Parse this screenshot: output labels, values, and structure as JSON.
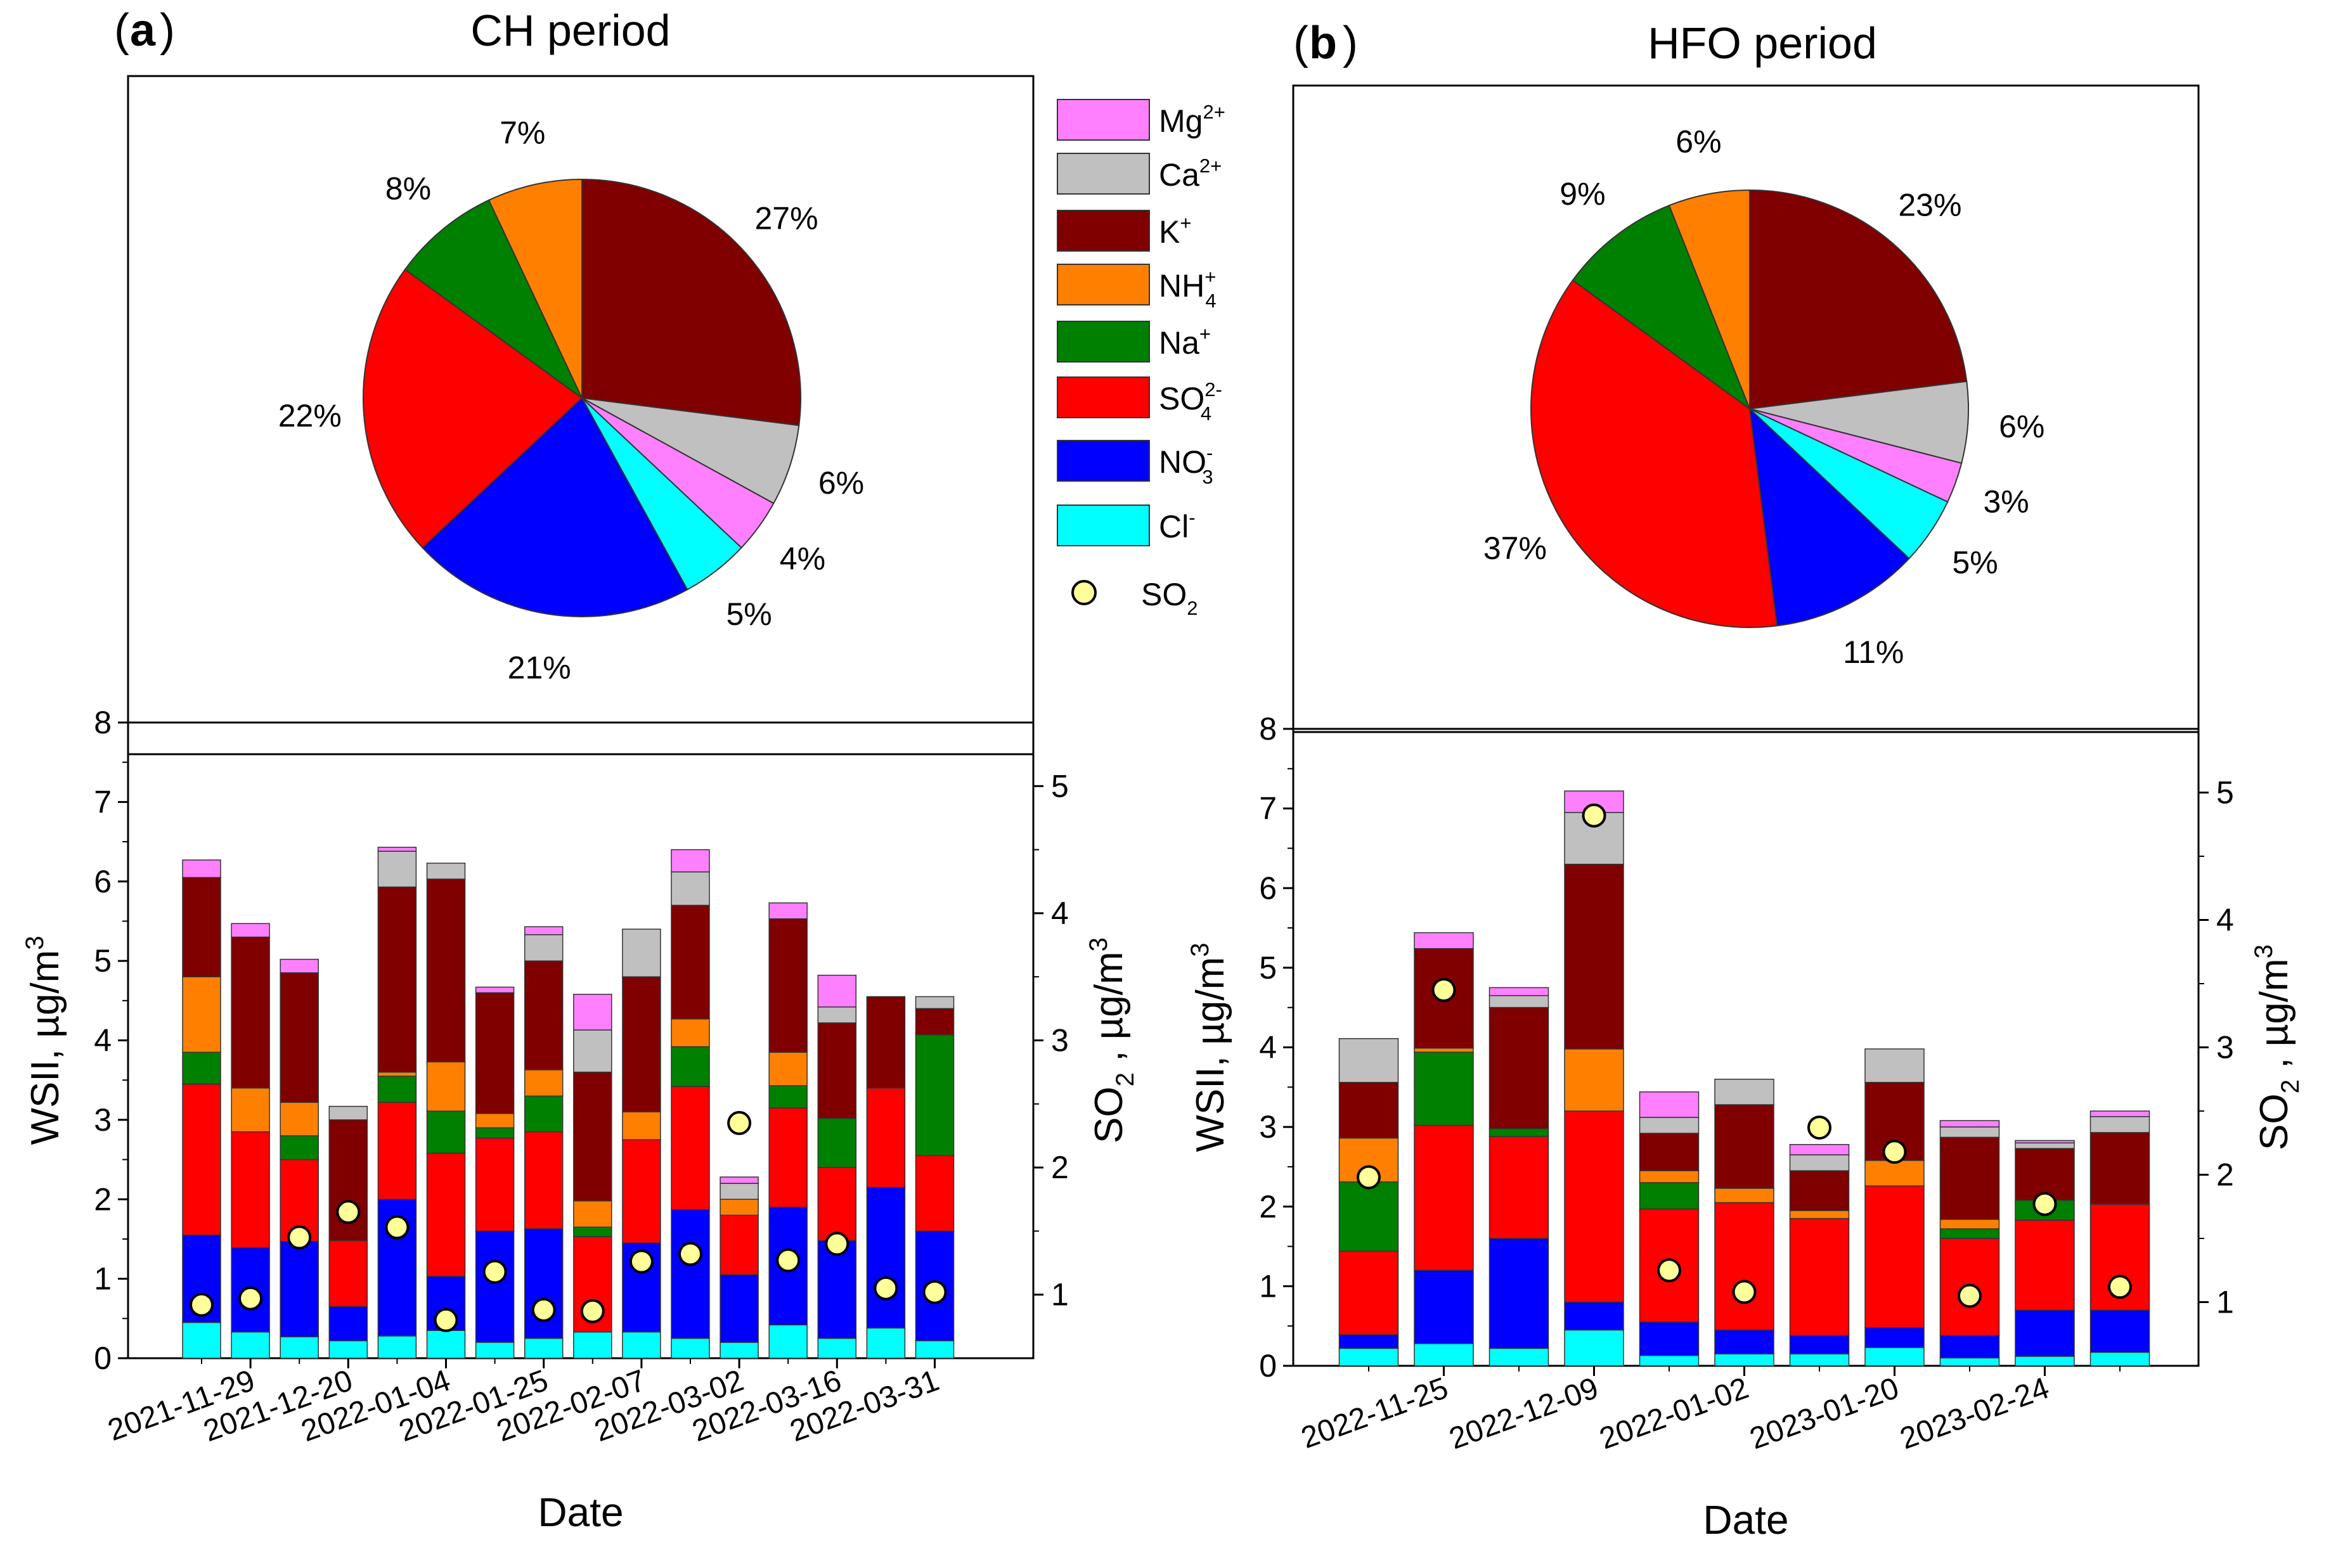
{
  "panels": {
    "a": {
      "label": "a",
      "title": "CH period"
    },
    "b": {
      "label": "b",
      "title": "HFO period"
    }
  },
  "legend": {
    "items": [
      {
        "key": "mg",
        "base": "Mg",
        "sup": "2+",
        "sub": "",
        "color": "#ff80ff"
      },
      {
        "key": "ca",
        "base": "Ca",
        "sup": "2+",
        "sub": "",
        "color": "#c0c0c0"
      },
      {
        "key": "k",
        "base": "K",
        "sup": "+",
        "sub": "",
        "color": "#800000"
      },
      {
        "key": "nh4",
        "base": "NH",
        "sup": "+",
        "sub": "4",
        "color": "#ff8000"
      },
      {
        "key": "na",
        "base": "Na",
        "sup": "+",
        "sub": "",
        "color": "#008000"
      },
      {
        "key": "so4",
        "base": "SO",
        "sup": "2-",
        "sub": "4",
        "color": "#ff0000"
      },
      {
        "key": "no3",
        "base": "NO",
        "sup": "-",
        "sub": "3",
        "color": "#0000ff"
      },
      {
        "key": "cl",
        "base": "Cl",
        "sup": "-",
        "sub": "",
        "color": "#00ffff"
      }
    ],
    "so2": {
      "base": "SO",
      "sub": "2",
      "color": "#ffff99"
    }
  },
  "axis_text": {
    "xlabel": "Date",
    "ylabel_left": "WSII, µg/m",
    "ylabel_right_base": "SO",
    "ylabel_right_sub": "2",
    "ylabel_right_rest": " , µg/m",
    "cube": "3"
  },
  "chart_data": [
    {
      "type": "pie",
      "panel": "a",
      "title": "CH period",
      "slices": [
        {
          "name": "K+",
          "value": 27,
          "label": "27%"
        },
        {
          "name": "Ca2+",
          "value": 6,
          "label": "6%"
        },
        {
          "name": "Mg2+",
          "value": 4,
          "label": "4%"
        },
        {
          "name": "Cl-",
          "value": 5,
          "label": "5%"
        },
        {
          "name": "NO3-",
          "value": 21,
          "label": "21%"
        },
        {
          "name": "SO42-",
          "value": 22,
          "label": "22%"
        },
        {
          "name": "Na+",
          "value": 8,
          "label": "8%"
        },
        {
          "name": "NH4+",
          "value": 7,
          "label": "7%"
        }
      ]
    },
    {
      "type": "pie",
      "panel": "b",
      "title": "HFO period",
      "slices": [
        {
          "name": "K+",
          "value": 23,
          "label": "23%"
        },
        {
          "name": "Ca2+",
          "value": 6,
          "label": "6%"
        },
        {
          "name": "Mg2+",
          "value": 3,
          "label": "3%"
        },
        {
          "name": "Cl-",
          "value": 5,
          "label": "5%"
        },
        {
          "name": "NO3-",
          "value": 11,
          "label": "11%"
        },
        {
          "name": "SO42-",
          "value": 37,
          "label": "37%"
        },
        {
          "name": "Na+",
          "value": 9,
          "label": "9%"
        },
        {
          "name": "NH4+",
          "value": 6,
          "label": "6%"
        }
      ]
    },
    {
      "type": "bar",
      "stacked": true,
      "panel": "a",
      "xlabel": "Date",
      "ylabel": "WSII, µg/m3",
      "y2label": "SO2 , µg/m3",
      "ylim": [
        0,
        8
      ],
      "y2lim": [
        0.5,
        5.5
      ],
      "yticks": [
        0,
        1,
        2,
        3,
        4,
        5,
        6,
        7,
        8
      ],
      "y2ticks": [
        1,
        2,
        3,
        4,
        5
      ],
      "xtick_labels": [
        "2021-11-29",
        "2021-12-20",
        "2022-01-04",
        "2022-01-25",
        "2022-02-07",
        "2022-03-02",
        "2022-03-16",
        "2022-03-31"
      ],
      "xtick_bar_index": [
        1,
        3,
        5,
        7,
        9,
        11,
        13,
        15
      ],
      "series_order": [
        "cl",
        "no3",
        "so4",
        "na",
        "nh4",
        "k",
        "ca",
        "mg"
      ],
      "bars": [
        {
          "cl": 0.45,
          "no3": 1.1,
          "so4": 1.9,
          "na": 0.4,
          "nh4": 0.95,
          "k": 1.25,
          "ca": 0.0,
          "mg": 0.22,
          "so2": 0.92
        },
        {
          "cl": 0.33,
          "no3": 1.06,
          "so4": 1.46,
          "na": 0.0,
          "nh4": 0.55,
          "k": 1.9,
          "ca": 0.0,
          "mg": 0.17,
          "so2": 0.97
        },
        {
          "cl": 0.27,
          "no3": 1.2,
          "so4": 1.03,
          "na": 0.3,
          "nh4": 0.42,
          "k": 1.63,
          "ca": 0.0,
          "mg": 0.17,
          "so2": 1.45
        },
        {
          "cl": 0.22,
          "no3": 0.43,
          "so4": 0.83,
          "na": 0.0,
          "nh4": 0.0,
          "k": 1.52,
          "ca": 0.17,
          "mg": 0.0,
          "so2": 1.65
        },
        {
          "cl": 0.28,
          "no3": 1.72,
          "so4": 1.22,
          "na": 0.33,
          "nh4": 0.05,
          "k": 2.33,
          "ca": 0.45,
          "mg": 0.05,
          "so2": 1.53
        },
        {
          "cl": 0.35,
          "no3": 0.68,
          "so4": 1.55,
          "na": 0.53,
          "nh4": 0.62,
          "k": 2.3,
          "ca": 0.2,
          "mg": 0.0,
          "so2": 0.8
        },
        {
          "cl": 0.2,
          "no3": 1.4,
          "so4": 1.17,
          "na": 0.13,
          "nh4": 0.18,
          "k": 1.52,
          "ca": 0.0,
          "mg": 0.07,
          "so2": 1.18
        },
        {
          "cl": 0.25,
          "no3": 1.38,
          "so4": 1.22,
          "na": 0.45,
          "nh4": 0.33,
          "k": 1.37,
          "ca": 0.33,
          "mg": 0.1,
          "so2": 0.88
        },
        {
          "cl": 0.33,
          "no3": 0.0,
          "so4": 1.2,
          "na": 0.12,
          "nh4": 0.33,
          "k": 1.62,
          "ca": 0.53,
          "mg": 0.45,
          "so2": 0.87
        },
        {
          "cl": 0.33,
          "no3": 1.12,
          "so4": 1.3,
          "na": 0.0,
          "nh4": 0.35,
          "k": 1.7,
          "ca": 0.6,
          "mg": 0.0,
          "so2": 1.26
        },
        {
          "cl": 0.25,
          "no3": 1.62,
          "so4": 1.55,
          "na": 0.5,
          "nh4": 0.35,
          "k": 1.43,
          "ca": 0.42,
          "mg": 0.28,
          "so2": 1.32
        },
        {
          "cl": 0.2,
          "no3": 0.85,
          "so4": 0.75,
          "na": 0.0,
          "nh4": 0.2,
          "k": 0.0,
          "ca": 0.2,
          "mg": 0.08,
          "so2": 2.35
        },
        {
          "cl": 0.42,
          "no3": 1.48,
          "so4": 1.25,
          "na": 0.28,
          "nh4": 0.42,
          "k": 1.68,
          "ca": 0.0,
          "mg": 0.2,
          "so2": 1.27
        },
        {
          "cl": 0.25,
          "no3": 1.23,
          "so4": 0.92,
          "na": 0.62,
          "nh4": 0.0,
          "k": 1.2,
          "ca": 0.2,
          "mg": 0.4,
          "so2": 1.4
        },
        {
          "cl": 0.38,
          "no3": 1.77,
          "so4": 1.25,
          "na": 0.0,
          "nh4": 0.0,
          "k": 1.15,
          "ca": 0.0,
          "mg": 0.0,
          "so2": 1.05
        },
        {
          "cl": 0.22,
          "no3": 1.38,
          "so4": 0.95,
          "na": 1.52,
          "nh4": 0.0,
          "k": 0.33,
          "ca": 0.15,
          "mg": 0.0,
          "so2": 1.02
        }
      ]
    },
    {
      "type": "bar",
      "stacked": true,
      "panel": "b",
      "xlabel": "Date",
      "ylabel": "WSII, µg/m3",
      "y2label": "SO2 , µg/m3",
      "ylim": [
        0,
        8
      ],
      "y2lim": [
        0.5,
        5.5
      ],
      "yticks": [
        0,
        1,
        2,
        3,
        4,
        5,
        6,
        7,
        8
      ],
      "y2ticks": [
        1,
        2,
        3,
        4,
        5
      ],
      "xtick_labels": [
        "2022-11-25",
        "2022-12-09",
        "2022-01-02",
        "2023-01-20",
        "2023-02-24"
      ],
      "xtick_bar_index": [
        1,
        3,
        5,
        7,
        9
      ],
      "series_order": [
        "cl",
        "no3",
        "so4",
        "na",
        "nh4",
        "k",
        "ca",
        "mg"
      ],
      "bars": [
        {
          "cl": 0.22,
          "no3": 0.17,
          "so4": 1.05,
          "na": 0.87,
          "nh4": 0.55,
          "k": 0.7,
          "ca": 0.55,
          "mg": 0.0,
          "so2": 1.98
        },
        {
          "cl": 0.28,
          "no3": 0.92,
          "so4": 1.82,
          "na": 0.92,
          "nh4": 0.05,
          "k": 1.25,
          "ca": 0.0,
          "mg": 0.2,
          "so2": 3.45
        },
        {
          "cl": 0.22,
          "no3": 1.38,
          "so4": 1.28,
          "na": 0.1,
          "nh4": 0.0,
          "k": 1.52,
          "ca": 0.15,
          "mg": 0.1,
          "so2": 0.0
        },
        {
          "cl": 0.45,
          "no3": 0.35,
          "so4": 2.4,
          "na": 0.0,
          "nh4": 0.78,
          "k": 2.32,
          "ca": 0.65,
          "mg": 0.27,
          "so2": 4.82
        },
        {
          "cl": 0.13,
          "no3": 0.42,
          "so4": 1.42,
          "na": 0.33,
          "nh4": 0.15,
          "k": 0.47,
          "ca": 0.2,
          "mg": 0.32,
          "so2": 1.25
        },
        {
          "cl": 0.15,
          "no3": 0.3,
          "so4": 1.6,
          "na": 0.0,
          "nh4": 0.18,
          "k": 1.05,
          "ca": 0.32,
          "mg": 0.0,
          "so2": 1.08
        },
        {
          "cl": 0.15,
          "no3": 0.23,
          "so4": 1.47,
          "na": 0.0,
          "nh4": 0.1,
          "k": 0.5,
          "ca": 0.2,
          "mg": 0.13,
          "so2": 2.37
        },
        {
          "cl": 0.23,
          "no3": 0.25,
          "so4": 1.78,
          "na": 0.0,
          "nh4": 0.32,
          "k": 0.98,
          "ca": 0.42,
          "mg": 0.0,
          "so2": 2.18
        },
        {
          "cl": 0.1,
          "no3": 0.28,
          "so4": 1.22,
          "na": 0.12,
          "nh4": 0.12,
          "k": 1.03,
          "ca": 0.13,
          "mg": 0.08,
          "so2": 1.05
        },
        {
          "cl": 0.12,
          "no3": 0.58,
          "so4": 1.13,
          "na": 0.25,
          "nh4": 0.0,
          "k": 0.65,
          "ca": 0.07,
          "mg": 0.03,
          "so2": 1.77
        },
        {
          "cl": 0.17,
          "no3": 0.53,
          "so4": 1.33,
          "na": 0.0,
          "nh4": 0.0,
          "k": 0.9,
          "ca": 0.2,
          "mg": 0.07,
          "so2": 1.12
        }
      ]
    }
  ]
}
